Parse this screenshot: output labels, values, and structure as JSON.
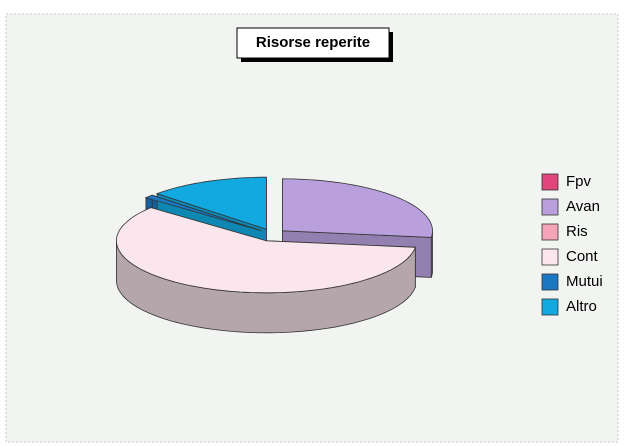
{
  "chart_data": {
    "type": "pie",
    "title": "Risorse reperite",
    "categories": [
      "Fpv",
      "Avan",
      "Ris",
      "Cont",
      "Mutui",
      "Altro"
    ],
    "values": [
      0,
      27,
      0,
      59,
      1,
      13
    ],
    "colors": [
      "#e0457b",
      "#b9a0dc",
      "#f4a6b8",
      "#fbe6ee",
      "#1a78c2",
      "#12a9e0"
    ],
    "legend": "right"
  }
}
